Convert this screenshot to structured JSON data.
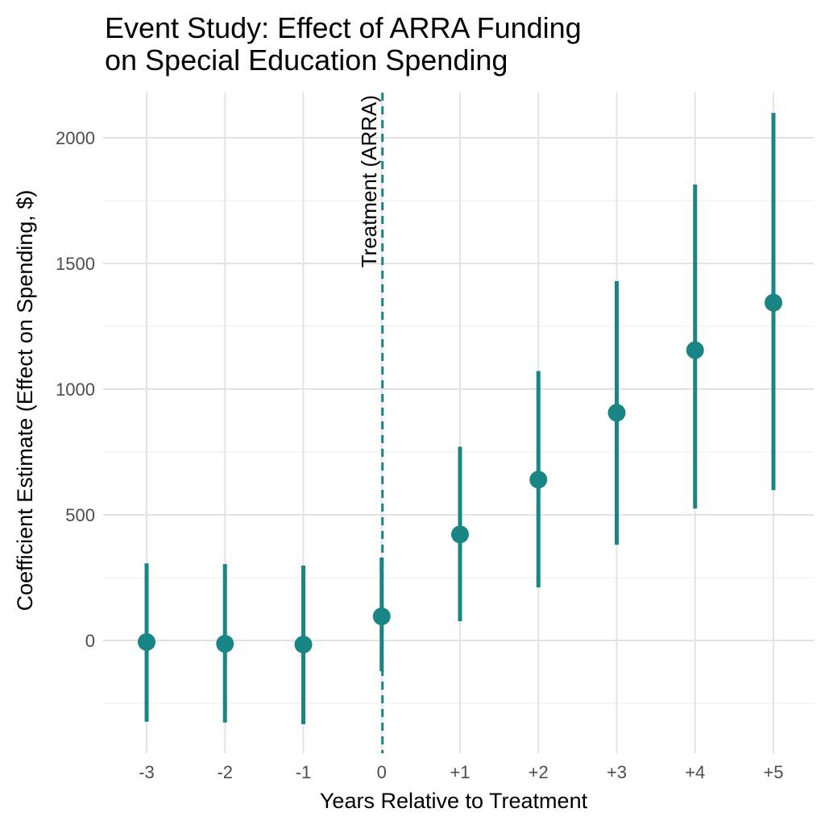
{
  "chart_data": {
    "type": "scatter",
    "title_lines": [
      "Event Study: Effect of ARRA Funding",
      "on Special Education Spending"
    ],
    "xlabel": "Years Relative to Treatment",
    "ylabel": "Coefficient Estimate (Effect on Spending, $)",
    "categories": [
      "-3",
      "-2",
      "-1",
      "0",
      "+1",
      "+2",
      "+3",
      "+4",
      "+5"
    ],
    "estimates": [
      -6,
      -13,
      -16,
      96,
      422,
      640,
      906,
      1155,
      1344
    ],
    "ci_lower": [
      -323,
      -326,
      -333,
      -122,
      77,
      211,
      381,
      525,
      598
    ],
    "ci_upper": [
      307,
      304,
      298,
      330,
      771,
      1072,
      1430,
      1814,
      2099
    ],
    "ylim": [
      -437,
      2176
    ],
    "yticks": [
      0,
      500,
      1000,
      1500,
      2000
    ],
    "grid": true,
    "vline": {
      "x": "0",
      "label": "Treatment (ARRA)",
      "style": "dashed"
    },
    "color": "#1a8585"
  }
}
